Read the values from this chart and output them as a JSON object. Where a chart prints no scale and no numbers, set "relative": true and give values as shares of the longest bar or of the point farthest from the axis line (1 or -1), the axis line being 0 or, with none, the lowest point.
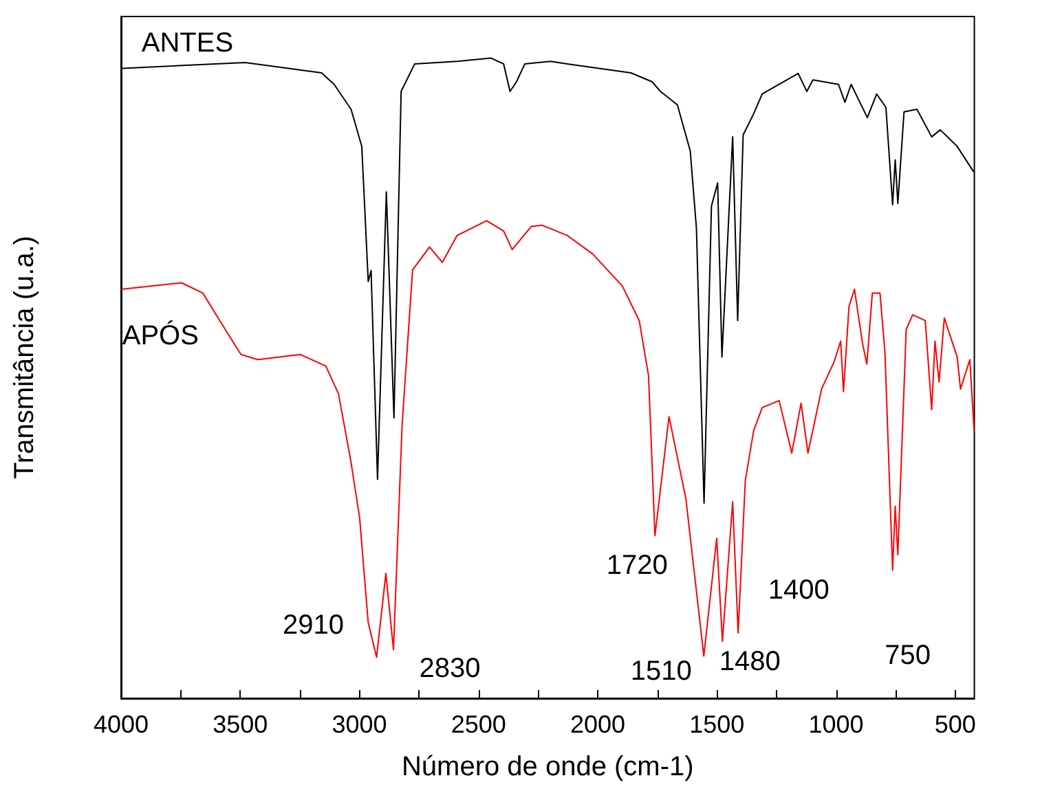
{
  "chart_data": {
    "type": "line",
    "relative": true,
    "xlabel": "Número de onde (cm-1)",
    "ylabel": "Transmitância (u.a.)",
    "xlim": [
      4000,
      420
    ],
    "xticks": [
      4000,
      {
        "value": 3750,
        "label": null
      },
      3500,
      {
        "value": 3250,
        "label": null
      },
      3000,
      {
        "value": 2750,
        "label": null
      },
      2500,
      {
        "value": 2250,
        "label": null
      },
      2000,
      {
        "value": 1750,
        "label": null
      },
      1500,
      {
        "value": 1250,
        "label": null
      },
      1000,
      {
        "value": 750,
        "label": null
      },
      500
    ],
    "tick_labels": "x",
    "grid": false,
    "legend": false,
    "marker": "none",
    "line_style": "solid",
    "series": [
      {
        "name": "ANTES",
        "color": "#000000",
        "x": [
          3995,
          3479,
          3159,
          3106,
          3035,
          2990,
          2963,
          2951,
          2924,
          2887,
          2855,
          2825,
          2768,
          2590,
          2448,
          2395,
          2368,
          2341,
          2306,
          2199,
          2128,
          1861,
          1772,
          1737,
          1666,
          1612,
          1586,
          1554,
          1523,
          1497,
          1479,
          1434,
          1413,
          1390,
          1346,
          1310,
          1159,
          1123,
          1097,
          990,
          963,
          937,
          869,
          830,
          791,
          763,
          752,
          741,
          715,
          661,
          599,
          563,
          492,
          424
        ],
        "values": [
          0.984,
          0.993,
          0.977,
          0.959,
          0.92,
          0.862,
          0.651,
          0.668,
          0.342,
          0.791,
          0.438,
          0.948,
          0.991,
          0.995,
          1.0,
          0.991,
          0.948,
          0.963,
          0.991,
          0.995,
          0.991,
          0.977,
          0.963,
          0.948,
          0.927,
          0.855,
          0.734,
          0.305,
          0.769,
          0.805,
          0.533,
          0.877,
          0.59,
          0.88,
          0.913,
          0.944,
          0.976,
          0.948,
          0.966,
          0.959,
          0.931,
          0.959,
          0.907,
          0.944,
          0.923,
          0.771,
          0.841,
          0.773,
          0.916,
          0.92,
          0.877,
          0.888,
          0.862,
          0.823
        ]
      },
      {
        "name": "APÓS",
        "color": "#ff0000",
        "x": [
          3995,
          3746,
          3657,
          3586,
          3497,
          3426,
          3248,
          3141,
          3088,
          3038,
          2999,
          2963,
          2928,
          2889,
          2857,
          2821,
          2777,
          2706,
          2652,
          2590,
          2466,
          2395,
          2359,
          2279,
          2234,
          2128,
          2021,
          1897,
          1826,
          1787,
          1760,
          1701,
          1630,
          1555,
          1501,
          1477,
          1434,
          1411,
          1381,
          1346,
          1310,
          1239,
          1186,
          1147,
          1118,
          1061,
          1008,
          981,
          969,
          946,
          923,
          889,
          871,
          848,
          816,
          795,
          763,
          752,
          741,
          706,
          679,
          626,
          599,
          585,
          568,
          546,
          492,
          478,
          439,
          421
        ],
        "values": [
          0.639,
          0.649,
          0.633,
          0.59,
          0.537,
          0.529,
          0.537,
          0.519,
          0.476,
          0.375,
          0.282,
          0.118,
          0.064,
          0.195,
          0.076,
          0.426,
          0.669,
          0.705,
          0.681,
          0.723,
          0.746,
          0.73,
          0.701,
          0.737,
          0.739,
          0.723,
          0.694,
          0.644,
          0.59,
          0.504,
          0.254,
          0.44,
          0.311,
          0.066,
          0.25,
          0.089,
          0.307,
          0.102,
          0.34,
          0.418,
          0.454,
          0.465,
          0.383,
          0.461,
          0.383,
          0.483,
          0.526,
          0.558,
          0.479,
          0.612,
          0.639,
          0.554,
          0.522,
          0.633,
          0.633,
          0.54,
          0.2,
          0.3,
          0.224,
          0.576,
          0.599,
          0.59,
          0.451,
          0.558,
          0.494,
          0.594,
          0.533,
          0.483,
          0.529,
          0.418
        ]
      }
    ],
    "annotations": [
      {
        "text": "2910",
        "x": 2928,
        "y": 0.064
      },
      {
        "text": "2830",
        "x": 2857,
        "y": 0.076
      },
      {
        "text": "1720",
        "x": 1760,
        "y": 0.254
      },
      {
        "text": "1510",
        "x": 1555,
        "y": 0.066
      },
      {
        "text": "1480",
        "x": 1477,
        "y": 0.089
      },
      {
        "text": "1400",
        "x": 1411,
        "y": 0.102
      },
      {
        "text": "750",
        "x": 752,
        "y": 0.2
      }
    ]
  }
}
